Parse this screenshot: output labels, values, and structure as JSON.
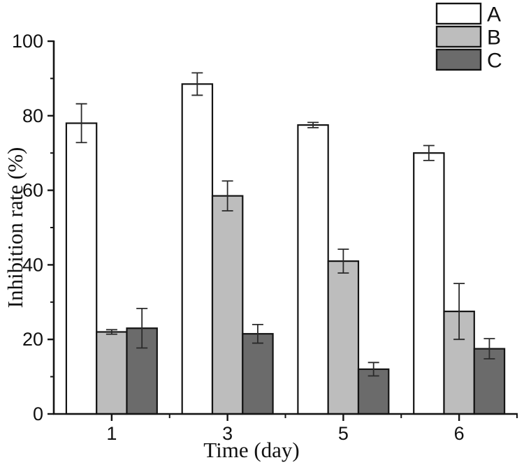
{
  "figure": {
    "background": "#ffffff",
    "line_color": "#141414",
    "error_bar_color": "#2a2a2a"
  },
  "chart_data": {
    "type": "bar",
    "title": "",
    "xlabel": "Time (day)",
    "ylabel": "Inhibition rate (%)",
    "categories": [
      "1",
      "3",
      "5",
      "6"
    ],
    "series": [
      {
        "name": "A",
        "fill": "#ffffff",
        "values": [
          78,
          88.5,
          77.5,
          70
        ],
        "errors": [
          5.2,
          3,
          0.7,
          2
        ]
      },
      {
        "name": "B",
        "fill": "#bdbdbd",
        "values": [
          22,
          58.5,
          41,
          27.5
        ],
        "errors": [
          0.6,
          4,
          3.2,
          7.5
        ]
      },
      {
        "name": "C",
        "fill": "#6b6b6b",
        "values": [
          23,
          21.5,
          12,
          17.5
        ],
        "errors": [
          5.3,
          2.5,
          1.8,
          2.7
        ]
      }
    ],
    "ylim": [
      0,
      100
    ],
    "y_major_ticks": [
      0,
      20,
      40,
      60,
      80,
      100
    ],
    "y_minor_step": 10,
    "x_minor_ticks_between_groups": true,
    "grid": false,
    "legend_position": "top-right",
    "error_bars": "symmetric, caps, drawn above bars"
  }
}
